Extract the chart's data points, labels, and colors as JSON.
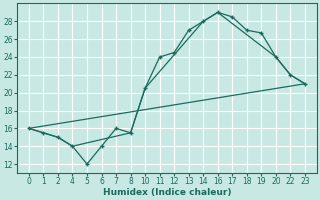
{
  "xlabel": "Humidex (Indice chaleur)",
  "bg_color": "#c8e8e4",
  "grid_color": "#ffffff",
  "line_color": "#1a6b5e",
  "categories": [
    0,
    1,
    2,
    4,
    5,
    6,
    7,
    8,
    10,
    11,
    12,
    13,
    14,
    16,
    17,
    18,
    19,
    20,
    22,
    23
  ],
  "line1_y": [
    16,
    15.5,
    15,
    14,
    12,
    14,
    16,
    15.5,
    20.5,
    24,
    24.5,
    27,
    28,
    29,
    28.5,
    27,
    26.7,
    24,
    22,
    21
  ],
  "line2_cat_idx": [
    0,
    2,
    3,
    7,
    8,
    12,
    13,
    17,
    18,
    19
  ],
  "line2_y": [
    16,
    15,
    14,
    15.5,
    20.5,
    28,
    29,
    24,
    22,
    21
  ],
  "line3_cat_idx": [
    0,
    19
  ],
  "line3_y": [
    16,
    21
  ],
  "ylim": [
    11,
    30
  ],
  "yticks": [
    12,
    14,
    16,
    18,
    20,
    22,
    24,
    26,
    28
  ],
  "tick_fontsize": 5.5,
  "xlabel_fontsize": 6.5
}
